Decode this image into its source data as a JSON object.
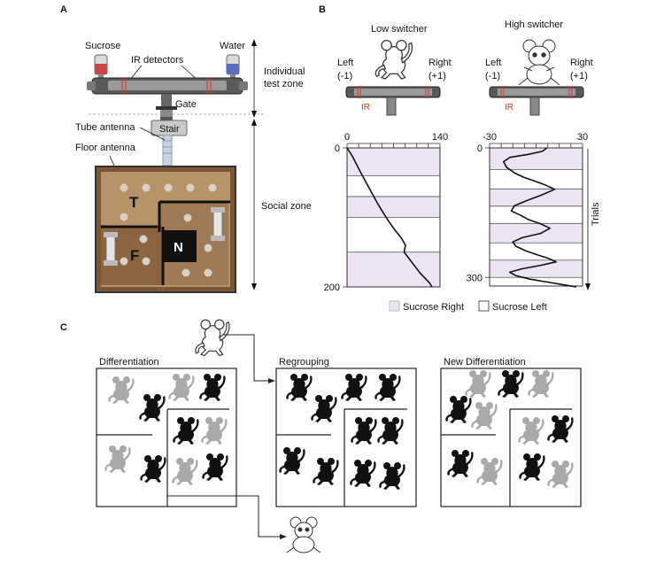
{
  "panels": {
    "a": {
      "letter": "A",
      "sucrose": "Sucrose",
      "water": "Water",
      "ir_detectors": "IR detectors",
      "gate": "Gate",
      "stair": "Stair",
      "tube_antenna": "Tube antenna",
      "floor_antenna": "Floor antenna",
      "individual_zone": [
        "Individual",
        "test zone"
      ],
      "social_zone": "Social zone",
      "rooms": {
        "t": "T",
        "f": "F",
        "n": "N"
      }
    },
    "b": {
      "letter": "B",
      "low_title": "Low switcher",
      "high_title": "High switcher",
      "left_label": "Left",
      "left_value": "(-1)",
      "right_label": "Right",
      "right_value": "(+1)",
      "ir_label": "IR",
      "trials_label": "Trials",
      "legend": {
        "right": "Sucrose Right",
        "left": "Sucrose Left"
      }
    },
    "c": {
      "letter": "C",
      "stages": [
        "Differentiation",
        "Regrouping",
        "New Differentiation"
      ]
    }
  },
  "colors": {
    "sucrose_right_band": "#ece4f3",
    "trace": "#111111",
    "ir_red": "#d9332b",
    "floor_light": "#b8936a",
    "floor_dark": "#7a5636",
    "mouse_dark": "#111111",
    "mouse_light": "#a9a9a9"
  },
  "chart_data": [
    {
      "type": "line",
      "title": "Low switcher",
      "orientation": "x horizontal (choice), y vertical downward (trial)",
      "xlim": [
        0,
        140
      ],
      "ylim": [
        0,
        200
      ],
      "x_ticks": [
        "0",
        "140"
      ],
      "y_ticks": [
        "0",
        "200"
      ],
      "sucrose_right_bands": [
        [
          0,
          40
        ],
        [
          70,
          100
        ],
        [
          150,
          200
        ]
      ],
      "series": [
        {
          "x": [
            0,
            8,
            15,
            22,
            30,
            38,
            46,
            55,
            63,
            72,
            82,
            88,
            86,
            94,
            102,
            110,
            118,
            124,
            128
          ],
          "y": [
            0,
            12,
            25,
            38,
            52,
            66,
            80,
            94,
            106,
            118,
            130,
            140,
            150,
            160,
            170,
            180,
            188,
            194,
            200
          ]
        }
      ]
    },
    {
      "type": "line",
      "title": "High switcher",
      "orientation": "x horizontal (choice), y vertical downward (trial)",
      "xlim": [
        -30,
        30
      ],
      "ylim": [
        0,
        320
      ],
      "x_ticks": [
        "-30",
        "30"
      ],
      "y_ticks": [
        "0",
        "300"
      ],
      "sucrose_right_bands": [
        [
          0,
          50
        ],
        [
          95,
          135
        ],
        [
          175,
          220
        ],
        [
          260,
          300
        ]
      ],
      "series": [
        {
          "x": [
            7,
            4,
            -5,
            -17,
            -21,
            -19,
            -14,
            -8,
            0,
            6,
            12,
            3,
            -6,
            -14,
            -16,
            -10,
            -5,
            3,
            9,
            3,
            -9,
            -15,
            -13,
            -7,
            1,
            8,
            13,
            3,
            -9,
            -17,
            -13,
            -4,
            6,
            16,
            26
          ],
          "y": [
            0,
            8,
            15,
            22,
            32,
            45,
            58,
            68,
            78,
            86,
            96,
            110,
            122,
            134,
            146,
            156,
            166,
            176,
            186,
            198,
            208,
            218,
            228,
            238,
            248,
            256,
            264,
            272,
            280,
            288,
            296,
            304,
            310,
            316,
            322
          ]
        }
      ]
    }
  ]
}
